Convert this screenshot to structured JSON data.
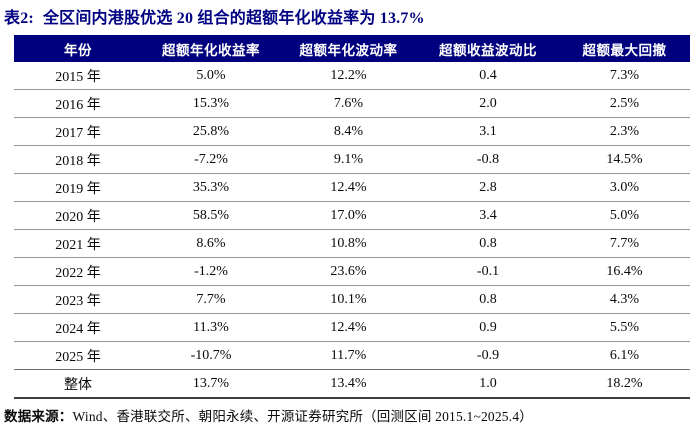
{
  "page": {
    "title_prefix": "表2:",
    "title_text": "全区间内港股优选 20 组合的超额年化收益率为 13.7%"
  },
  "table": {
    "columns": [
      "年份",
      "超额年化收益率",
      "超额年化波动率",
      "超额收益波动比",
      "超额最大回撤"
    ],
    "rows": [
      [
        "2015 年",
        "5.0%",
        "12.2%",
        "0.4",
        "7.3%"
      ],
      [
        "2016 年",
        "15.3%",
        "7.6%",
        "2.0",
        "2.5%"
      ],
      [
        "2017 年",
        "25.8%",
        "8.4%",
        "3.1",
        "2.3%"
      ],
      [
        "2018 年",
        "-7.2%",
        "9.1%",
        "-0.8",
        "14.5%"
      ],
      [
        "2019 年",
        "35.3%",
        "12.4%",
        "2.8",
        "3.0%"
      ],
      [
        "2020 年",
        "58.5%",
        "17.0%",
        "3.4",
        "5.0%"
      ],
      [
        "2021 年",
        "8.6%",
        "10.8%",
        "0.8",
        "7.7%"
      ],
      [
        "2022 年",
        "-1.2%",
        "23.6%",
        "-0.1",
        "16.4%"
      ],
      [
        "2023 年",
        "7.7%",
        "10.1%",
        "0.8",
        "4.3%"
      ],
      [
        "2024 年",
        "11.3%",
        "12.4%",
        "0.9",
        "5.5%"
      ],
      [
        "2025 年",
        "-10.7%",
        "11.7%",
        "-0.9",
        "6.1%"
      ],
      [
        "整体",
        "13.7%",
        "13.4%",
        "1.0",
        "18.2%"
      ]
    ]
  },
  "footer": {
    "label": "数据来源：",
    "text": "Wind、香港联交所、朝阳永续、开源证券研究所（回测区间 2015.1~2025.4）"
  },
  "colors": {
    "header_bg": "#00007E",
    "header_text": "#FFFFFF",
    "title_text": "#000082",
    "body_text": "#0A0A0A",
    "row_separator": "#9A9A9A",
    "strong_separator": "#6E6E6E",
    "table_bottom_border": "#3F3F3F",
    "page_bg": "#FFFFFF"
  }
}
